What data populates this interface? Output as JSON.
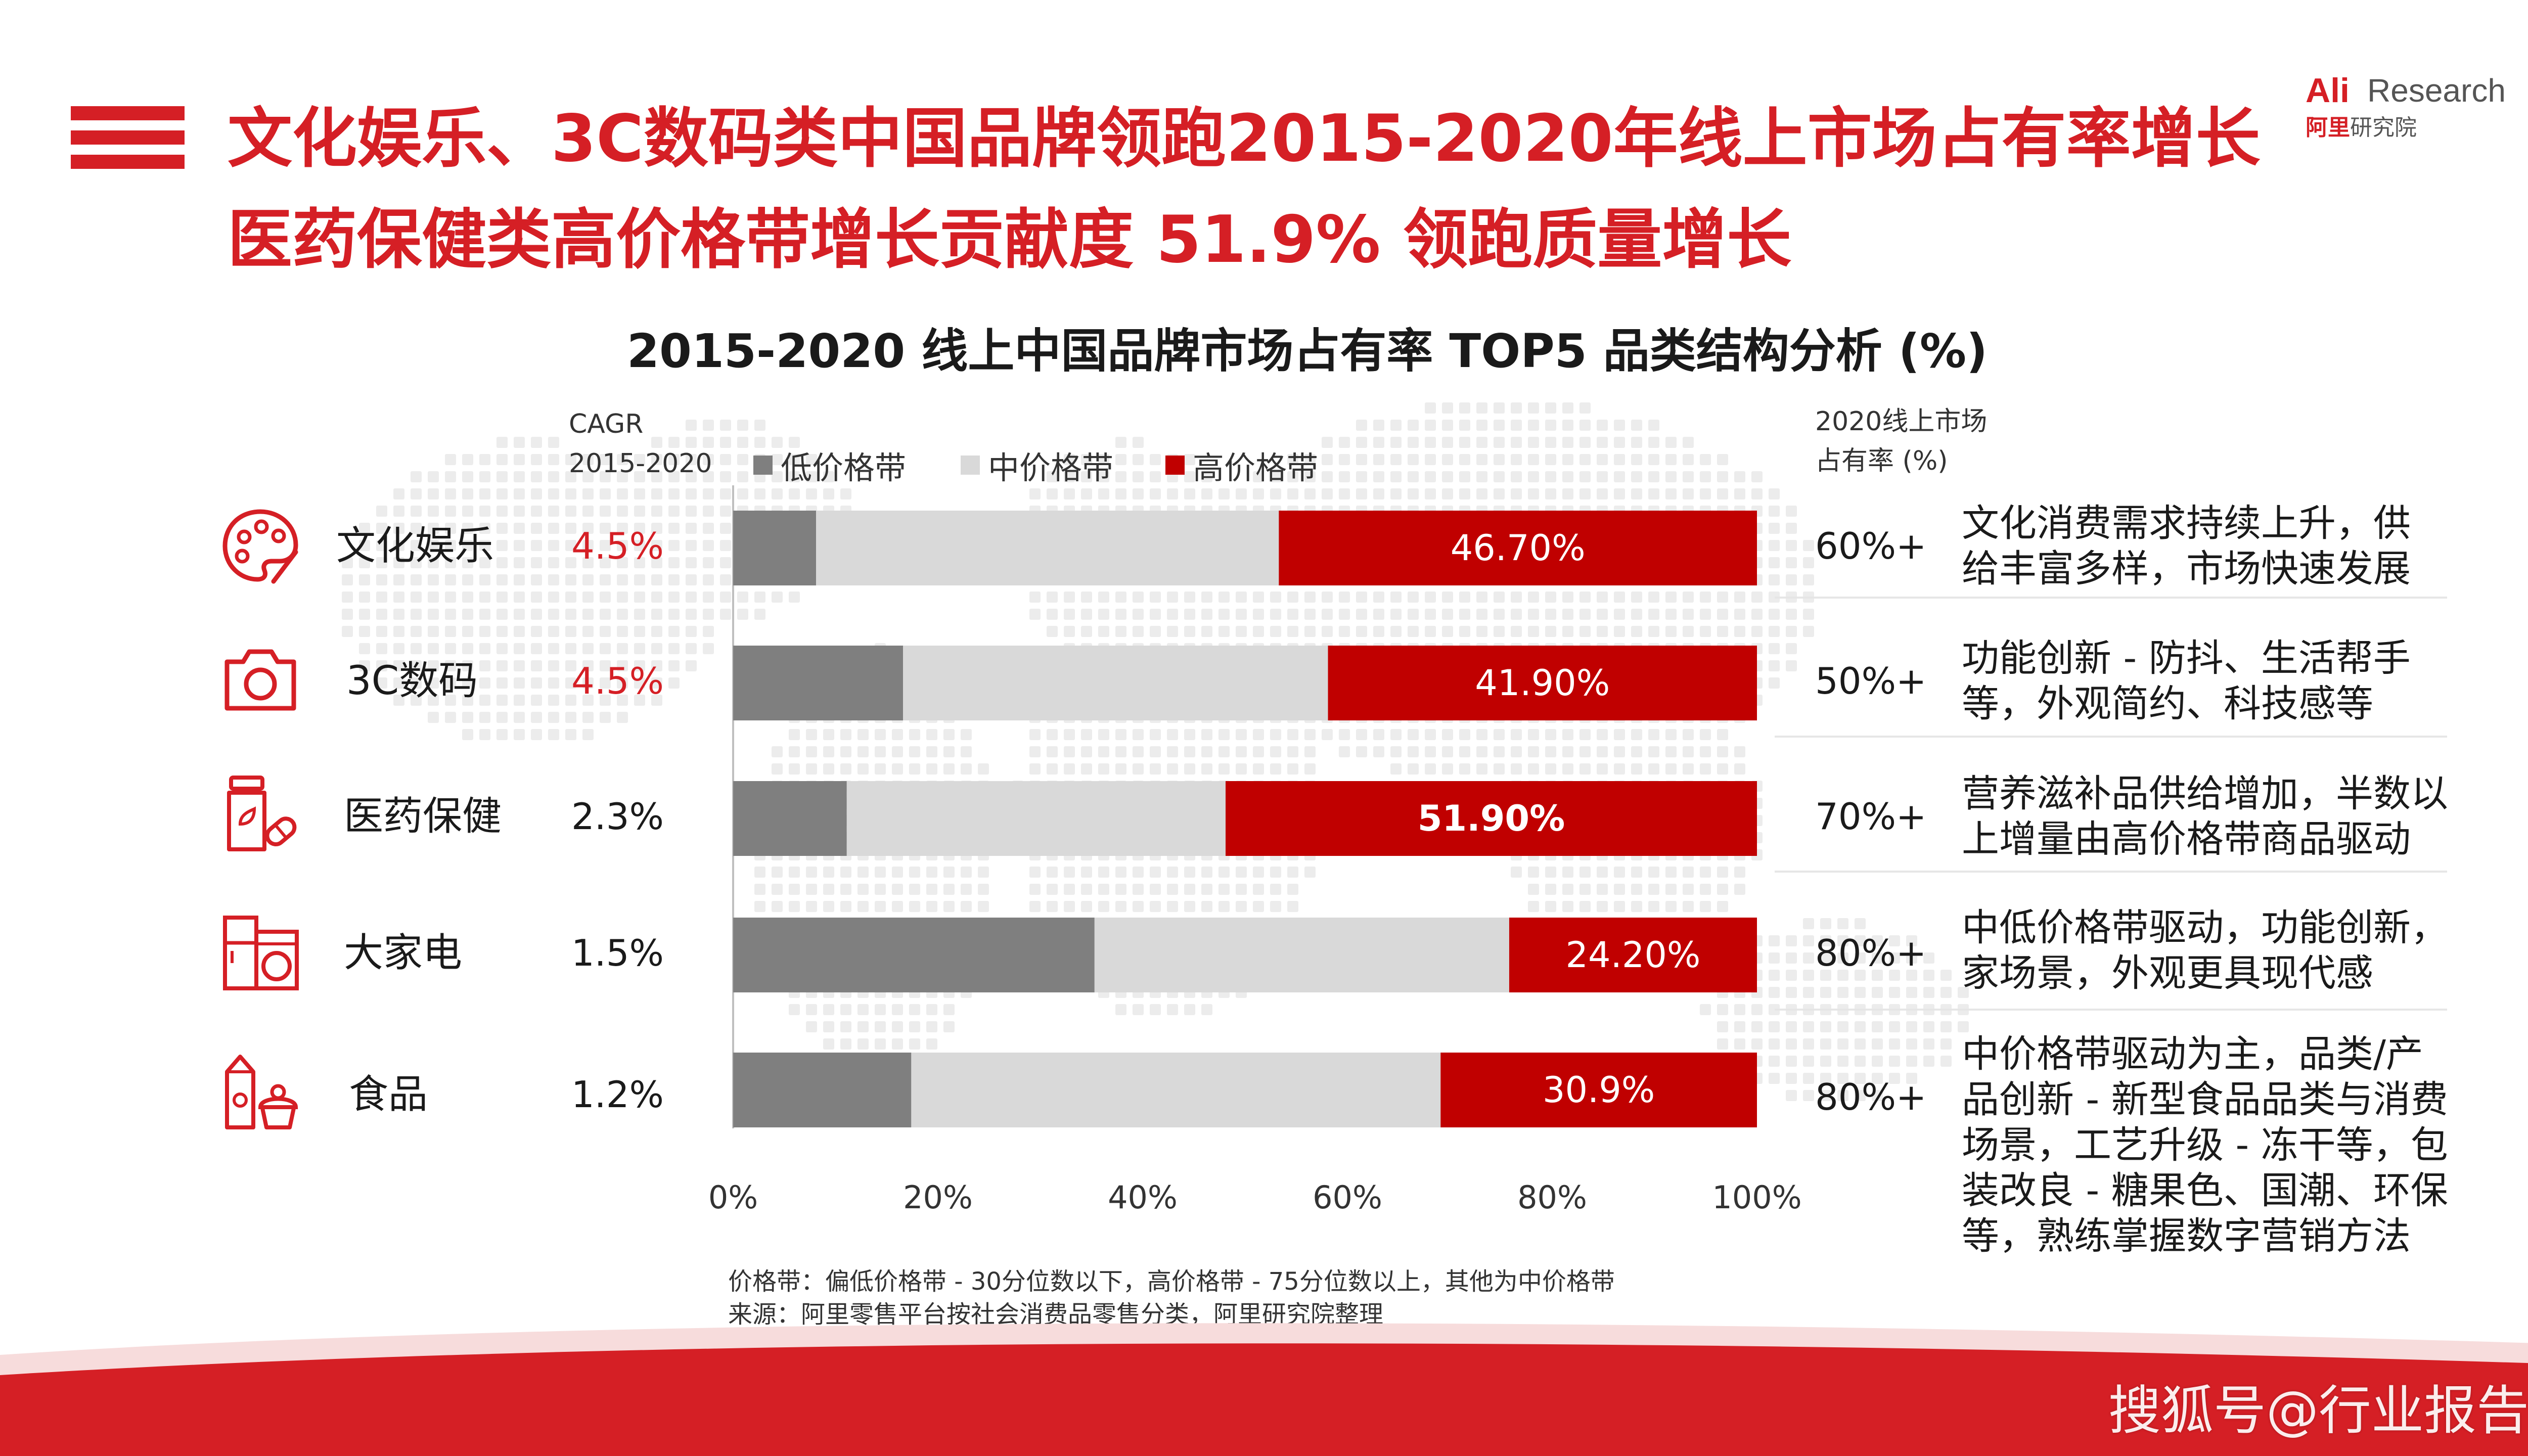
{
  "header": {
    "title_line_1": "文化娱乐、3C数码类中国品牌领跑2015-2020年线上市场占有率增长",
    "title_line_2": "医药保健类高价格带增长贡献度 51.9% 领跑质量增长",
    "logo_ali": "Ali",
    "logo_research": "Research",
    "logo_cn_red": "阿里",
    "logo_cn": "研究院"
  },
  "colors": {
    "accent": "#d51f25",
    "low": "#7f7f7f",
    "mid": "#d9d9d9",
    "high": "#c00000"
  },
  "column_headers": {
    "cagr_line1": "CAGR",
    "cagr_line2": "2015-2020",
    "share_line1": "2020线上市场",
    "share_line2": "占有率 (%)"
  },
  "rows": [
    {
      "icon": "palette-icon",
      "label": "文化娱乐",
      "cagr": "4.5%",
      "cagr_color": "#d51f25",
      "share": "60%+",
      "description": "文化消费需求持续上升，供\n给丰富多样，市场快速发展"
    },
    {
      "icon": "camera-icon",
      "label": "3C数码",
      "cagr": "4.5%",
      "cagr_color": "#d51f25",
      "share": "50%+",
      "description": "功能创新 - 防抖、生活帮手\n等，外观简约、科技感等"
    },
    {
      "icon": "medicine-bottle-icon",
      "label": "医药保健",
      "cagr": "2.3%",
      "cagr_color": "#1a1a1a",
      "share": "70%+",
      "description": "营养滋补品供给增加，半数以\n上增量由高价格带商品驱动"
    },
    {
      "icon": "washing-machine-icon",
      "label": "大家电",
      "cagr": "1.5%",
      "cagr_color": "#1a1a1a",
      "share": "80%+",
      "description": "中低价格带驱动，功能创新，\n家场景，外观更具现代感"
    },
    {
      "icon": "food-icon",
      "label": "食品",
      "cagr": "1.2%",
      "cagr_color": "#1a1a1a",
      "share": "80%+",
      "description": "中价格带驱动为主，品类/产\n品创新 - 新型食品品类与消费\n场景，工艺升级 - 冻干等，包\n装改良 - 糖果色、国潮、环保\n等，熟练掌握数字营销方法"
    }
  ],
  "chart_data": {
    "type": "bar",
    "orientation": "horizontal",
    "stacked": true,
    "title": "2015-2020 线上中国品牌市场占有率 TOP5 品类结构分析 (%)",
    "categories": [
      "文化娱乐",
      "3C数码",
      "医药保健",
      "大家电",
      "食品"
    ],
    "series": [
      {
        "name": "低价格带",
        "color": "#7f7f7f",
        "values": [
          8.1,
          16.6,
          11.1,
          35.3,
          17.4
        ]
      },
      {
        "name": "中价格带",
        "color": "#d9d9d9",
        "values": [
          45.2,
          41.5,
          37.0,
          40.5,
          51.7
        ]
      },
      {
        "name": "高价格带",
        "color": "#c00000",
        "values": [
          46.7,
          41.9,
          51.9,
          24.2,
          30.9
        ]
      }
    ],
    "data_labels": [
      "46.70%",
      "41.90%",
      "51.90%",
      "24.20%",
      "30.9%"
    ],
    "data_label_bold": [
      false,
      false,
      true,
      false,
      false
    ],
    "xlim": [
      0,
      100
    ],
    "x_ticks": [
      "0%",
      "20%",
      "40%",
      "60%",
      "80%",
      "100%"
    ],
    "legend": "top",
    "grid": false
  },
  "notes": {
    "line1": "价格带：偏低价格带 - 30分位数以下，高价格带 - 75分位数以上，其他为中价格带",
    "line2": "来源：阿里零售平台按社会消费品零售分类，阿里研究院整理"
  },
  "watermark": "搜狐号@行业报告"
}
